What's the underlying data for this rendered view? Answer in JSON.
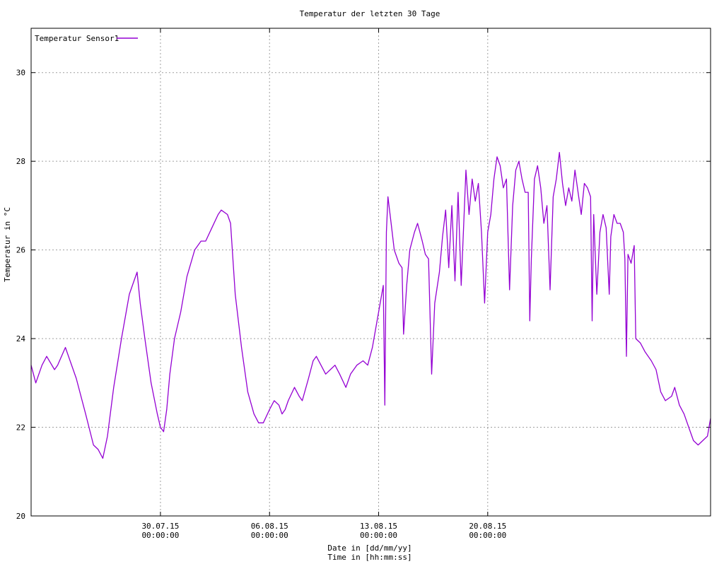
{
  "chart_data": {
    "type": "line",
    "title": "Temperatur der letzten 30 Tage",
    "xlabel": "Date in [dd/mm/yy]",
    "xlabel2": "Time in [hh:mm:ss]",
    "ylabel": "Temperatur in °C",
    "x_unit": "days relative to 30.07.15 00:00:00",
    "xlim": [
      -8.3,
      35.3
    ],
    "ylim": [
      20,
      31
    ],
    "grid": true,
    "legend_position": "top-left",
    "y_ticks": [
      {
        "value": 20,
        "label": "20"
      },
      {
        "value": 22,
        "label": "22"
      },
      {
        "value": 24,
        "label": "24"
      },
      {
        "value": 26,
        "label": "26"
      },
      {
        "value": 28,
        "label": "28"
      },
      {
        "value": 30,
        "label": "30"
      }
    ],
    "x_ticks": [
      {
        "value": 0,
        "date": "30.07.15",
        "time": "00:00:00"
      },
      {
        "value": 7,
        "date": "06.08.15",
        "time": "00:00:00"
      },
      {
        "value": 14,
        "date": "13.08.15",
        "time": "00:00:00"
      },
      {
        "value": 21,
        "date": "20.08.15",
        "time": "00:00:00"
      }
    ],
    "series": [
      {
        "name": "Temperatur Sensor1",
        "color": "#9400d3",
        "points": [
          [
            -8.3,
            23.4
          ],
          [
            -8.0,
            23.0
          ],
          [
            -7.6,
            23.4
          ],
          [
            -7.3,
            23.6
          ],
          [
            -6.8,
            23.3
          ],
          [
            -6.6,
            23.4
          ],
          [
            -6.1,
            23.8
          ],
          [
            -5.4,
            23.1
          ],
          [
            -4.8,
            22.3
          ],
          [
            -4.3,
            21.6
          ],
          [
            -4.0,
            21.5
          ],
          [
            -3.7,
            21.3
          ],
          [
            -3.4,
            21.8
          ],
          [
            -3.0,
            22.9
          ],
          [
            -2.5,
            24.0
          ],
          [
            -2.0,
            25.0
          ],
          [
            -1.7,
            25.3
          ],
          [
            -1.5,
            25.5
          ],
          [
            -1.3,
            24.8
          ],
          [
            -1.0,
            24.0
          ],
          [
            -0.6,
            23.0
          ],
          [
            -0.2,
            22.3
          ],
          [
            0.0,
            22.0
          ],
          [
            0.2,
            21.9
          ],
          [
            0.4,
            22.4
          ],
          [
            0.6,
            23.2
          ],
          [
            0.9,
            24.0
          ],
          [
            1.3,
            24.6
          ],
          [
            1.7,
            25.4
          ],
          [
            2.2,
            26.0
          ],
          [
            2.6,
            26.2
          ],
          [
            2.9,
            26.2
          ],
          [
            3.3,
            26.5
          ],
          [
            3.7,
            26.8
          ],
          [
            3.9,
            26.9
          ],
          [
            4.3,
            26.8
          ],
          [
            4.5,
            26.6
          ],
          [
            4.8,
            25.0
          ],
          [
            5.2,
            23.8
          ],
          [
            5.6,
            22.8
          ],
          [
            6.0,
            22.3
          ],
          [
            6.3,
            22.1
          ],
          [
            6.6,
            22.1
          ],
          [
            7.0,
            22.4
          ],
          [
            7.3,
            22.6
          ],
          [
            7.6,
            22.5
          ],
          [
            7.8,
            22.3
          ],
          [
            8.0,
            22.4
          ],
          [
            8.2,
            22.6
          ],
          [
            8.6,
            22.9
          ],
          [
            8.9,
            22.7
          ],
          [
            9.1,
            22.6
          ],
          [
            9.5,
            23.1
          ],
          [
            9.8,
            23.5
          ],
          [
            10.0,
            23.6
          ],
          [
            10.3,
            23.4
          ],
          [
            10.6,
            23.2
          ],
          [
            10.9,
            23.3
          ],
          [
            11.2,
            23.4
          ],
          [
            11.5,
            23.2
          ],
          [
            11.9,
            22.9
          ],
          [
            12.2,
            23.2
          ],
          [
            12.6,
            23.4
          ],
          [
            13.0,
            23.5
          ],
          [
            13.3,
            23.4
          ],
          [
            13.6,
            23.8
          ],
          [
            14.0,
            24.6
          ],
          [
            14.3,
            25.2
          ],
          [
            14.4,
            22.5
          ],
          [
            14.5,
            26.4
          ],
          [
            14.6,
            27.2
          ],
          [
            14.8,
            26.6
          ],
          [
            15.0,
            26.0
          ],
          [
            15.3,
            25.7
          ],
          [
            15.5,
            25.6
          ],
          [
            15.6,
            24.1
          ],
          [
            15.8,
            25.2
          ],
          [
            16.0,
            26.0
          ],
          [
            16.3,
            26.4
          ],
          [
            16.5,
            26.6
          ],
          [
            16.8,
            26.2
          ],
          [
            17.0,
            25.9
          ],
          [
            17.2,
            25.8
          ],
          [
            17.4,
            23.2
          ],
          [
            17.6,
            24.8
          ],
          [
            17.9,
            25.5
          ],
          [
            18.1,
            26.3
          ],
          [
            18.3,
            26.9
          ],
          [
            18.5,
            25.6
          ],
          [
            18.7,
            27.0
          ],
          [
            18.9,
            25.3
          ],
          [
            19.1,
            27.3
          ],
          [
            19.3,
            25.2
          ],
          [
            19.6,
            27.8
          ],
          [
            19.8,
            26.8
          ],
          [
            20.0,
            27.6
          ],
          [
            20.2,
            27.1
          ],
          [
            20.4,
            27.5
          ],
          [
            20.6,
            26.4
          ],
          [
            20.8,
            24.8
          ],
          [
            21.0,
            26.4
          ],
          [
            21.2,
            26.8
          ],
          [
            21.4,
            27.6
          ],
          [
            21.6,
            28.1
          ],
          [
            21.8,
            27.9
          ],
          [
            22.0,
            27.4
          ],
          [
            22.2,
            27.6
          ],
          [
            22.4,
            25.1
          ],
          [
            22.6,
            27.0
          ],
          [
            22.8,
            27.8
          ],
          [
            23.0,
            28.0
          ],
          [
            23.2,
            27.6
          ],
          [
            23.4,
            27.3
          ],
          [
            23.6,
            27.3
          ],
          [
            23.7,
            24.4
          ],
          [
            23.8,
            25.8
          ],
          [
            24.0,
            27.6
          ],
          [
            24.2,
            27.9
          ],
          [
            24.4,
            27.4
          ],
          [
            24.6,
            26.6
          ],
          [
            24.8,
            27.0
          ],
          [
            25.0,
            25.1
          ],
          [
            25.2,
            27.2
          ],
          [
            25.4,
            27.6
          ],
          [
            25.6,
            28.2
          ],
          [
            25.8,
            27.5
          ],
          [
            26.0,
            27.0
          ],
          [
            26.2,
            27.4
          ],
          [
            26.4,
            27.1
          ],
          [
            26.6,
            27.8
          ],
          [
            26.8,
            27.3
          ],
          [
            27.0,
            26.8
          ],
          [
            27.2,
            27.5
          ],
          [
            27.4,
            27.4
          ],
          [
            27.6,
            27.2
          ],
          [
            27.7,
            24.4
          ],
          [
            27.8,
            26.8
          ],
          [
            28.0,
            25.0
          ],
          [
            28.2,
            26.4
          ],
          [
            28.4,
            26.8
          ],
          [
            28.6,
            26.5
          ],
          [
            28.8,
            25.0
          ],
          [
            28.9,
            26.3
          ],
          [
            29.1,
            26.8
          ],
          [
            29.3,
            26.6
          ],
          [
            29.5,
            26.6
          ],
          [
            29.7,
            26.4
          ],
          [
            29.8,
            25.8
          ],
          [
            29.9,
            23.6
          ],
          [
            30.0,
            25.9
          ],
          [
            30.2,
            25.7
          ],
          [
            30.4,
            26.1
          ],
          [
            30.5,
            24.0
          ],
          [
            30.8,
            23.9
          ],
          [
            31.1,
            23.7
          ],
          [
            31.5,
            23.5
          ],
          [
            31.8,
            23.3
          ],
          [
            32.1,
            22.8
          ],
          [
            32.4,
            22.6
          ],
          [
            32.8,
            22.7
          ],
          [
            33.0,
            22.9
          ],
          [
            33.3,
            22.5
          ],
          [
            33.6,
            22.3
          ],
          [
            33.9,
            22.0
          ],
          [
            34.2,
            21.7
          ],
          [
            34.5,
            21.6
          ],
          [
            34.8,
            21.7
          ],
          [
            35.1,
            21.8
          ],
          [
            35.3,
            22.2
          ]
        ]
      }
    ]
  }
}
